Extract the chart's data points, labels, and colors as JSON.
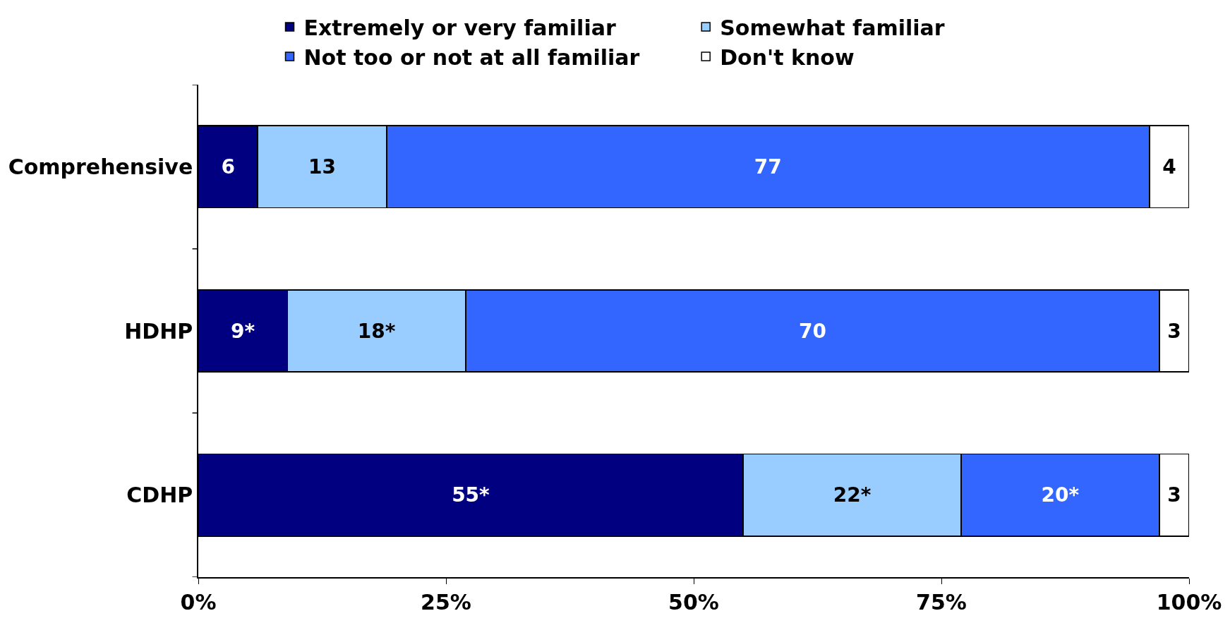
{
  "chart_data": {
    "type": "bar",
    "orientation": "horizontal",
    "stacked": true,
    "categories": [
      "Comprehensive",
      "HDHP",
      "CDHP"
    ],
    "series": [
      {
        "name": "Extremely or very familiar",
        "color": "#000080",
        "values": [
          6,
          9,
          55
        ],
        "value_labels": [
          "6",
          "9*",
          "55*"
        ]
      },
      {
        "name": "Somewhat familiar",
        "color": "#99ccff",
        "values": [
          13,
          18,
          22
        ],
        "value_labels": [
          "13",
          "18*",
          "22*"
        ]
      },
      {
        "name": "Not too or not at all familiar",
        "color": "#3366ff",
        "values": [
          77,
          70,
          20
        ],
        "value_labels": [
          "77",
          "70",
          "20*"
        ]
      },
      {
        "name": "Don't know",
        "color": "#ffffff",
        "values": [
          4,
          3,
          3
        ],
        "value_labels": [
          "4",
          "3",
          "3"
        ]
      }
    ],
    "xlim": [
      0,
      100
    ],
    "xticks": [
      {
        "value": 0,
        "label": "0%"
      },
      {
        "value": 25,
        "label": "25%"
      },
      {
        "value": 50,
        "label": "50%"
      },
      {
        "value": 75,
        "label": "75%"
      },
      {
        "value": 100,
        "label": "100%"
      }
    ],
    "legend": "top"
  }
}
